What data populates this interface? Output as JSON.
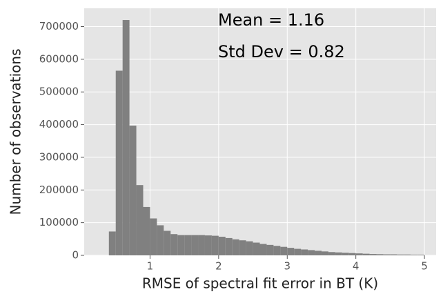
{
  "chart_data": {
    "type": "histogram",
    "xlabel": "RMSE of spectral fit error in BT (K)",
    "ylabel": "Number of observations",
    "annotations": [
      "Mean = 1.16",
      "Std Dev = 0.82"
    ],
    "bins": [
      0.4,
      0.5,
      0.6,
      0.7,
      0.8,
      0.9,
      1.0,
      1.1,
      1.2,
      1.3,
      1.4,
      1.5,
      1.6,
      1.7,
      1.8,
      1.9,
      2.0,
      2.1,
      2.2,
      2.3,
      2.4,
      2.5,
      2.6,
      2.7,
      2.8,
      2.9,
      3.0,
      3.1,
      3.2,
      3.3,
      3.4,
      3.5,
      3.6,
      3.7,
      3.8,
      3.9,
      4.0,
      4.1,
      4.2,
      4.3,
      4.4,
      4.5,
      4.6,
      4.7,
      4.8,
      4.9,
      5.0
    ],
    "counts": [
      73000,
      565000,
      720000,
      397000,
      215000,
      148000,
      113000,
      92000,
      75000,
      65000,
      62000,
      62000,
      62000,
      62000,
      61000,
      60000,
      57000,
      53000,
      49000,
      46000,
      43000,
      39000,
      35000,
      32000,
      29000,
      26000,
      23000,
      20000,
      18000,
      16000,
      14000,
      12000,
      10000,
      9000,
      8000,
      7000,
      6000,
      5000,
      4000,
      3500,
      3000,
      3000,
      2500,
      2500,
      2000,
      2000
    ],
    "color": "#808080",
    "xlim": [
      0.04,
      5.17
    ],
    "ylim": [
      0,
      756000
    ],
    "xticks": [
      1,
      2,
      3,
      4,
      5
    ],
    "yticks": [
      0,
      100000,
      200000,
      300000,
      400000,
      500000,
      600000,
      700000
    ],
    "grid": true
  }
}
